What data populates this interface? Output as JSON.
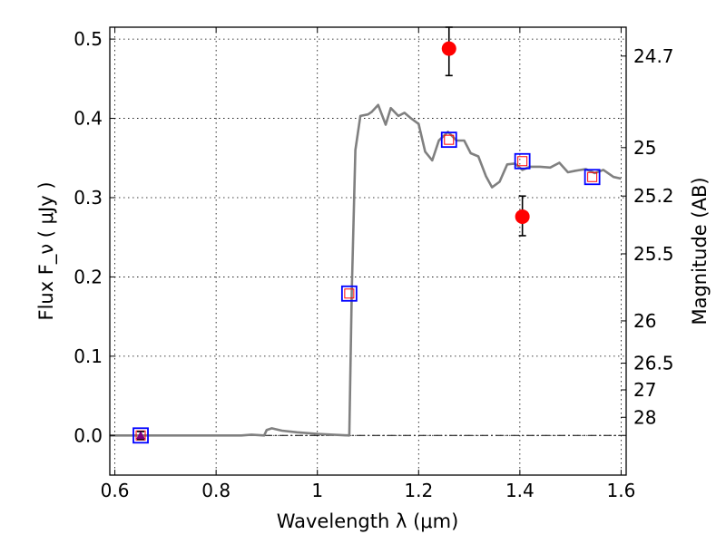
{
  "chart_data": {
    "type": "scatter",
    "xlabel": "Wavelength  λ (μm)",
    "ylabel": "Flux  F_ν  ( μJy )",
    "y2label": "Magnitude (AB)",
    "xlim": [
      0.59,
      1.61
    ],
    "ylim": [
      -0.05,
      0.515
    ],
    "grid": true,
    "x_ticks": [
      0.6,
      0.8,
      1.0,
      1.2,
      1.4,
      1.6
    ],
    "x_tick_labels": [
      "0.6",
      "0.8",
      "1",
      "1.2",
      "1.4",
      "1.6"
    ],
    "y_ticks": [
      0.0,
      0.1,
      0.2,
      0.3,
      0.4,
      0.5
    ],
    "y_tick_labels": [
      "0.0",
      "0.1",
      "0.2",
      "0.3",
      "0.4",
      "0.5"
    ],
    "mag_ticks": [
      {
        "label": "24.7",
        "flux": 0.4786
      },
      {
        "label": "25",
        "flux": 0.3631
      },
      {
        "label": "25.2",
        "flux": 0.302
      },
      {
        "label": "25.5",
        "flux": 0.2291
      },
      {
        "label": "26",
        "flux": 0.1445
      },
      {
        "label": "26.5",
        "flux": 0.0912
      },
      {
        "label": "27",
        "flux": 0.0575
      },
      {
        "label": "28",
        "flux": 0.0229
      }
    ],
    "zero_line_y": 0.0,
    "series": [
      {
        "kind": "sed_model_line",
        "color": "#808080",
        "x": [
          0.59,
          0.85,
          0.87,
          0.895,
          0.9,
          0.91,
          0.93,
          0.96,
          1.0,
          1.03,
          1.063,
          1.068,
          1.075,
          1.085,
          1.1,
          1.107,
          1.12,
          1.135,
          1.145,
          1.16,
          1.172,
          1.185,
          1.2,
          1.213,
          1.227,
          1.24,
          1.258,
          1.275,
          1.29,
          1.303,
          1.318,
          1.333,
          1.345,
          1.36,
          1.375,
          1.39,
          1.405,
          1.42,
          1.44,
          1.46,
          1.478,
          1.495,
          1.51,
          1.53,
          1.548,
          1.565,
          1.585,
          1.6
        ],
        "y": [
          0.0,
          0.0,
          0.001,
          0.0,
          0.007,
          0.009,
          0.006,
          0.004,
          0.002,
          0.001,
          0.0,
          0.18,
          0.36,
          0.403,
          0.405,
          0.408,
          0.417,
          0.392,
          0.413,
          0.403,
          0.407,
          0.4,
          0.393,
          0.358,
          0.347,
          0.372,
          0.383,
          0.372,
          0.372,
          0.356,
          0.352,
          0.327,
          0.313,
          0.32,
          0.342,
          0.343,
          0.335,
          0.339,
          0.339,
          0.338,
          0.344,
          0.332,
          0.334,
          0.336,
          0.331,
          0.335,
          0.326,
          0.324
        ]
      },
      {
        "kind": "model_bandpass_flux",
        "marker": "open-square",
        "color": "#0000ff",
        "inner_color": "#ff0000",
        "x": [
          0.651,
          1.063,
          1.26,
          1.405,
          1.543
        ],
        "y": [
          0.0,
          0.179,
          0.373,
          0.346,
          0.326
        ]
      },
      {
        "kind": "observed_flux",
        "marker": "circle",
        "color": "#ff0000",
        "x": [
          1.26,
          1.405
        ],
        "y": [
          0.488,
          0.276
        ],
        "yerr": [
          [
            0.454,
            0.515
          ],
          [
            0.252,
            0.302
          ]
        ]
      },
      {
        "kind": "observed_upper_limit",
        "marker": "triangle",
        "color": "#800080",
        "x": [
          0.651
        ],
        "y": [
          0.0
        ],
        "yerr": [
          [
            -0.005,
            0.005
          ]
        ]
      }
    ]
  }
}
